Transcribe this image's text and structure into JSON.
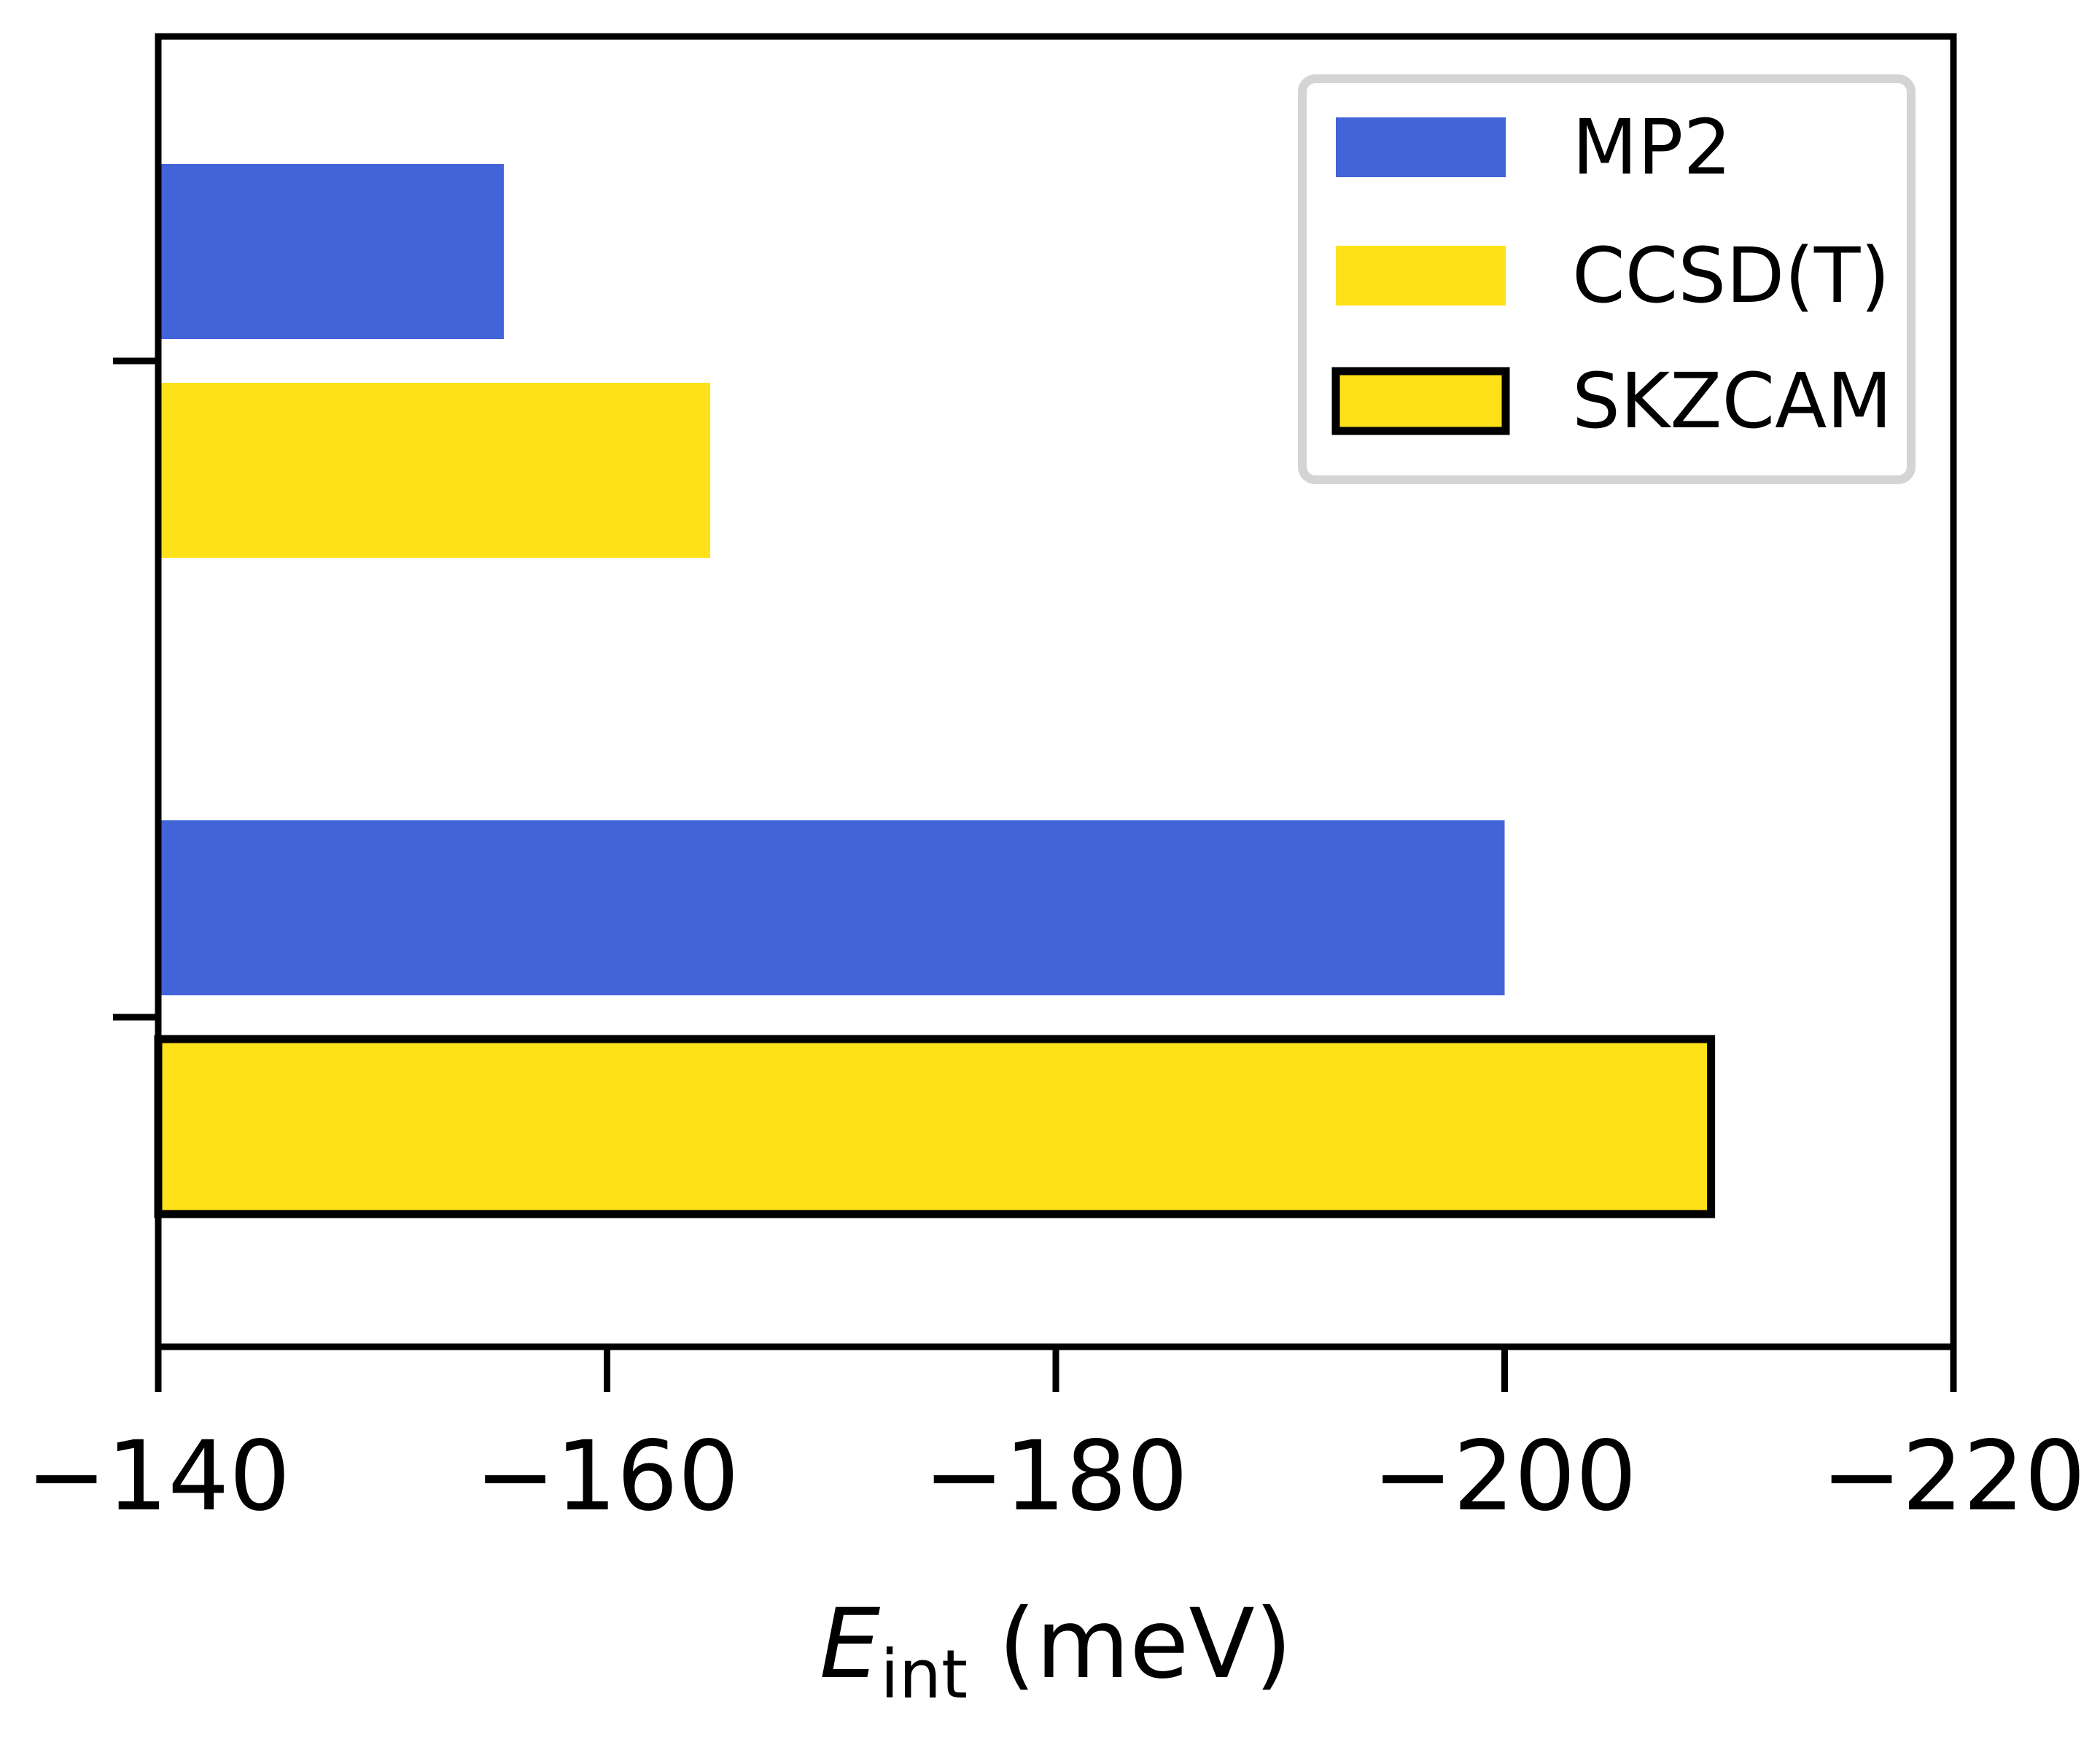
{
  "chart_data": {
    "type": "bar",
    "orientation": "horizontal",
    "xlabel_main": "E",
    "xlabel_sub": "int",
    "xlabel_unit": " (meV)",
    "xlim": [
      -140,
      -220
    ],
    "xticks": [
      "−140",
      "−160",
      "−180",
      "−200",
      "−220"
    ],
    "xtick_values": [
      -140,
      -160,
      -180,
      -200,
      -220
    ],
    "groups": [
      {
        "bars": [
          {
            "series": "MP2",
            "value": -155.4
          },
          {
            "series": "CCSD(T)",
            "value": -164.6
          }
        ]
      },
      {
        "bars": [
          {
            "series": "MP2",
            "value": -200.0
          },
          {
            "series": "SKZCAM",
            "value": -209.2
          }
        ]
      }
    ],
    "legend": [
      {
        "name": "MP2",
        "color": "#4363d8"
      },
      {
        "name": "CCSD(T)",
        "color": "#ffe119"
      },
      {
        "name": "SKZCAM",
        "color": "#ffe119",
        "outlined": true
      }
    ],
    "legend_position": "top-right",
    "grid": false
  }
}
